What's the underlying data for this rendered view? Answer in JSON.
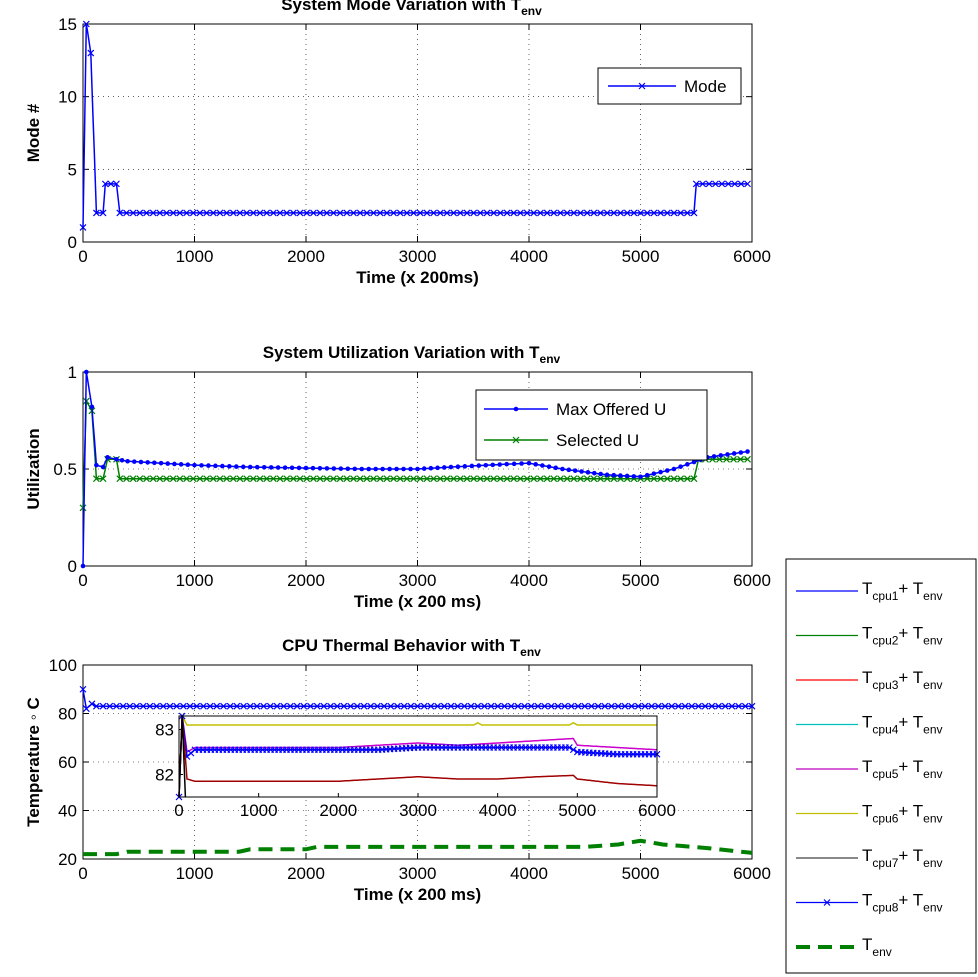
{
  "chart_data": [
    {
      "type": "line",
      "title": "System Mode Variation with T",
      "title_sub": "env",
      "xlabel": "Time (x 200ms)",
      "ylabel": "Mode #",
      "xlim": [
        0,
        6000
      ],
      "ylim": [
        0,
        15
      ],
      "xticks": [
        "0",
        "1000",
        "2000",
        "3000",
        "4000",
        "5000",
        "6000"
      ],
      "yticks": [
        "0",
        "5",
        "10",
        "15"
      ],
      "grid": true,
      "legend_placement": "top-right",
      "series": [
        {
          "name": "Mode",
          "color": "#0000ff",
          "marker": "x",
          "points": [
            [
              0,
              1
            ],
            [
              30,
              15
            ],
            [
              70,
              13
            ],
            [
              120,
              2
            ],
            [
              180,
              2
            ],
            [
              200,
              4
            ],
            [
              300,
              4
            ],
            [
              330,
              2
            ],
            [
              5480,
              2
            ],
            [
              5500,
              4
            ],
            [
              5960,
              4
            ]
          ]
        }
      ]
    },
    {
      "type": "line",
      "title": "System Utilization Variation with T",
      "title_sub": "env",
      "xlabel": "Time (x 200 ms)",
      "ylabel": "Utilization",
      "xlim": [
        0,
        6000
      ],
      "ylim": [
        0,
        1
      ],
      "xticks": [
        "0",
        "1000",
        "2000",
        "3000",
        "4000",
        "5000",
        "6000"
      ],
      "yticks": [
        "0",
        "0.5",
        "1"
      ],
      "grid": true,
      "legend_placement": "top-right",
      "series": [
        {
          "name": "Max Offered U",
          "color": "#0000ff",
          "marker": "dot",
          "points": [
            [
              0,
              0
            ],
            [
              30,
              1.0
            ],
            [
              80,
              0.82
            ],
            [
              120,
              0.52
            ],
            [
              180,
              0.51
            ],
            [
              220,
              0.56
            ],
            [
              300,
              0.55
            ],
            [
              400,
              0.54
            ],
            [
              700,
              0.53
            ],
            [
              1000,
              0.52
            ],
            [
              1500,
              0.51
            ],
            [
              2000,
              0.505
            ],
            [
              2500,
              0.5
            ],
            [
              3000,
              0.5
            ],
            [
              3300,
              0.51
            ],
            [
              3800,
              0.525
            ],
            [
              4000,
              0.53
            ],
            [
              4300,
              0.5
            ],
            [
              4700,
              0.47
            ],
            [
              5000,
              0.46
            ],
            [
              5300,
              0.5
            ],
            [
              5600,
              0.56
            ],
            [
              5960,
              0.59
            ]
          ]
        },
        {
          "name": "Selected U",
          "color": "#008000",
          "marker": "x",
          "points": [
            [
              0,
              0.3
            ],
            [
              30,
              0.85
            ],
            [
              80,
              0.8
            ],
            [
              120,
              0.45
            ],
            [
              180,
              0.45
            ],
            [
              220,
              0.55
            ],
            [
              300,
              0.55
            ],
            [
              330,
              0.45
            ],
            [
              5480,
              0.45
            ],
            [
              5520,
              0.55
            ],
            [
              5960,
              0.55
            ]
          ]
        }
      ]
    },
    {
      "type": "line",
      "title": "CPU Thermal Behavior with T",
      "title_sub": "env",
      "xlabel": "Time (x 200 ms)",
      "ylabel": "Temperature ◦ C",
      "xlim": [
        0,
        6000
      ],
      "ylim": [
        20,
        100
      ],
      "xticks": [
        "0",
        "1000",
        "2000",
        "3000",
        "4000",
        "5000",
        "6000"
      ],
      "yticks": [
        "20",
        "40",
        "60",
        "80",
        "100"
      ],
      "grid": true,
      "legend_placement": "outside-right",
      "series": [
        {
          "name": "cpu8",
          "color": "#0000ff",
          "marker": "x",
          "points": [
            [
              0,
              90
            ],
            [
              30,
              82
            ],
            [
              80,
              84
            ],
            [
              120,
              83
            ],
            [
              6000,
              83
            ]
          ]
        },
        {
          "name": "env",
          "color": "#008000",
          "dashed": true,
          "points": [
            [
              0,
              22
            ],
            [
              300,
              22
            ],
            [
              400,
              23
            ],
            [
              1400,
              23
            ],
            [
              1500,
              24
            ],
            [
              2000,
              24
            ],
            [
              2100,
              25
            ],
            [
              4500,
              25
            ],
            [
              4800,
              26
            ],
            [
              5000,
              27.5
            ],
            [
              5200,
              26
            ],
            [
              5600,
              24.5
            ],
            [
              6000,
              22.5
            ]
          ]
        }
      ],
      "inset": {
        "xlim": [
          0,
          6000
        ],
        "ylim": [
          81.5,
          83.3
        ],
        "xticks": [
          "0",
          "1000",
          "2000",
          "3000",
          "4000",
          "5000",
          "6000"
        ],
        "yticks": [
          "82",
          "83"
        ],
        "series": [
          {
            "color": "#c0c000",
            "points": [
              [
                0,
                81.5
              ],
              [
                40,
                83.3
              ],
              [
                100,
                83.1
              ],
              [
                200,
                83.1
              ],
              [
                3700,
                83.1
              ],
              [
                3750,
                83.15
              ],
              [
                3800,
                83.1
              ],
              [
                4900,
                83.1
              ],
              [
                4950,
                83.15
              ],
              [
                5000,
                83.1
              ],
              [
                6000,
                83.1
              ]
            ]
          },
          {
            "color": "#cc00cc",
            "points": [
              [
                0,
                81.5
              ],
              [
                40,
                83.3
              ],
              [
                100,
                82.5
              ],
              [
                200,
                82.6
              ],
              [
                2000,
                82.6
              ],
              [
                2500,
                82.65
              ],
              [
                3000,
                82.7
              ],
              [
                3500,
                82.65
              ],
              [
                4000,
                82.7
              ],
              [
                4950,
                82.8
              ],
              [
                5000,
                82.65
              ],
              [
                5500,
                82.6
              ],
              [
                6000,
                82.55
              ]
            ]
          },
          {
            "color": "#0000ff",
            "marker": "x",
            "points": [
              [
                0,
                81.5
              ],
              [
                40,
                83.3
              ],
              [
                100,
                82.4
              ],
              [
                200,
                82.55
              ],
              [
                2500,
                82.55
              ],
              [
                3000,
                82.6
              ],
              [
                4900,
                82.6
              ],
              [
                5000,
                82.5
              ],
              [
                5500,
                82.45
              ],
              [
                6000,
                82.45
              ]
            ]
          },
          {
            "color": "#a00000",
            "points": [
              [
                0,
                81.5
              ],
              [
                40,
                83.3
              ],
              [
                100,
                81.9
              ],
              [
                200,
                81.85
              ],
              [
                2000,
                81.85
              ],
              [
                2500,
                81.9
              ],
              [
                3000,
                81.95
              ],
              [
                3500,
                81.9
              ],
              [
                4000,
                81.9
              ],
              [
                4500,
                81.95
              ],
              [
                4950,
                81.98
              ],
              [
                5000,
                81.9
              ],
              [
                5500,
                81.8
              ],
              [
                6000,
                81.75
              ]
            ]
          },
          {
            "color": "#000000",
            "points": [
              [
                0,
                81.5
              ],
              [
                40,
                83.3
              ],
              [
                80,
                81.5
              ]
            ]
          }
        ]
      }
    }
  ],
  "legend3": {
    "entries": [
      {
        "sym": "T",
        "sub1": "cpu1",
        "mid": "+ T",
        "sub2": "env",
        "color": "#0000ff",
        "style": "line"
      },
      {
        "sym": "T",
        "sub1": "cpu2",
        "mid": "+ T",
        "sub2": "env",
        "color": "#008000",
        "style": "line"
      },
      {
        "sym": "T",
        "sub1": "cpu3",
        "mid": "+ T",
        "sub2": "env",
        "color": "#ff0000",
        "style": "line"
      },
      {
        "sym": "T",
        "sub1": "cpu4",
        "mid": "+ T",
        "sub2": "env",
        "color": "#00bfbf",
        "style": "line"
      },
      {
        "sym": "T",
        "sub1": "cpu5",
        "mid": "+ T",
        "sub2": "env",
        "color": "#bf00bf",
        "style": "line"
      },
      {
        "sym": "T",
        "sub1": "cpu6",
        "mid": "+ T",
        "sub2": "env",
        "color": "#bfbf00",
        "style": "line"
      },
      {
        "sym": "T",
        "sub1": "cpu7",
        "mid": "+ T",
        "sub2": "env",
        "color": "#404040",
        "style": "line"
      },
      {
        "sym": "T",
        "sub1": "cpu8",
        "mid": "+ T",
        "sub2": "env",
        "color": "#0000ff",
        "style": "marker-x"
      },
      {
        "sym": "T",
        "sub1": "env",
        "mid": "",
        "sub2": "",
        "color": "#008000",
        "style": "dashed"
      }
    ]
  }
}
